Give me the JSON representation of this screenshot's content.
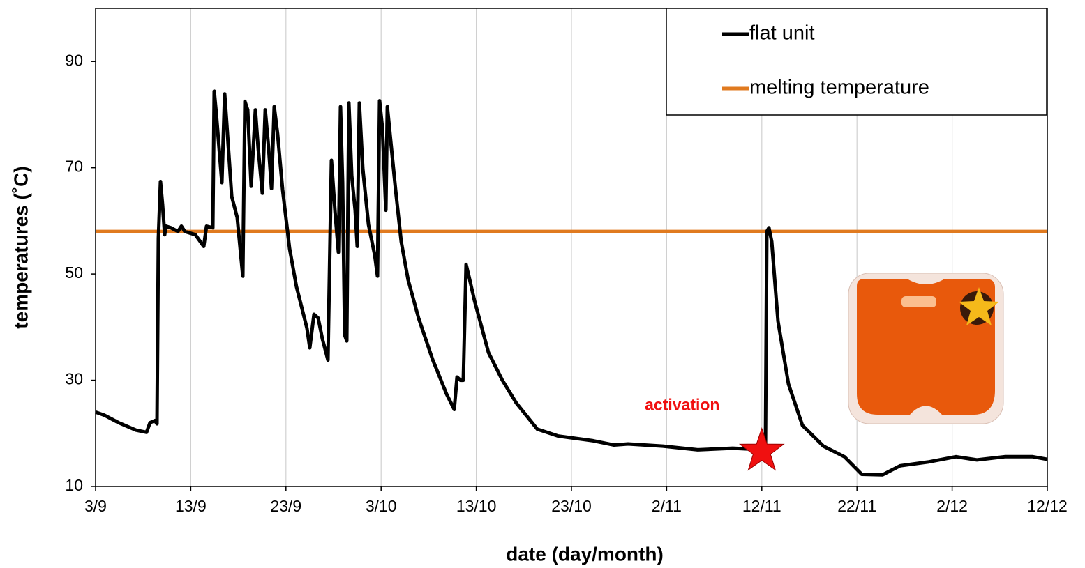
{
  "chart_data": {
    "type": "line",
    "x_label": "date (day/month)",
    "y_label": "temperatures (˚C)",
    "xlim": [
      0,
      100
    ],
    "ylim": [
      10,
      100
    ],
    "xticks": [
      {
        "value": 0,
        "label": "3/9"
      },
      {
        "value": 10,
        "label": "13/9"
      },
      {
        "value": 20,
        "label": "23/9"
      },
      {
        "value": 30,
        "label": "3/10"
      },
      {
        "value": 40,
        "label": "13/10"
      },
      {
        "value": 50,
        "label": "23/10"
      },
      {
        "value": 60,
        "label": "2/11"
      },
      {
        "value": 70,
        "label": "12/11"
      },
      {
        "value": 80,
        "label": "22/11"
      },
      {
        "value": 90,
        "label": "2/12"
      },
      {
        "value": 100,
        "label": "12/12"
      }
    ],
    "yticks": [
      10,
      30,
      50,
      70,
      90
    ],
    "grid": "x",
    "legend": "upper right",
    "series": [
      {
        "name": "flat unit",
        "color": "#000000",
        "x": [
          0,
          0.95,
          2.42,
          4.25,
          5.35,
          5.72,
          6.23,
          6.45,
          6.6,
          6.82,
          7.04,
          7.26,
          7.4,
          7.92,
          8.65,
          9.02,
          9.38,
          10.48,
          11.36,
          11.66,
          12.32,
          12.46,
          12.68,
          13.27,
          13.56,
          13.78,
          14.3,
          14.88,
          15.47,
          15.69,
          15.98,
          16.35,
          16.79,
          17.08,
          17.52,
          17.82,
          18.18,
          18.48,
          18.77,
          19.13,
          19.65,
          20.38,
          21.11,
          22.21,
          22.51,
          22.95,
          23.39,
          23.83,
          24.41,
          24.78,
          25.15,
          25.51,
          25.73,
          25.95,
          26.17,
          26.39,
          26.61,
          26.91,
          27.27,
          27.49,
          27.71,
          28.08,
          28.67,
          29.33,
          29.62,
          29.84,
          30.13,
          30.5,
          30.65,
          31.01,
          31.52,
          32.11,
          32.84,
          33.94,
          35.41,
          36.88,
          37.68,
          37.98,
          38.34,
          38.64,
          38.93,
          39.22,
          39.81,
          41.28,
          42.74,
          44.21,
          46.41,
          48.61,
          52.27,
          54.47,
          55.94,
          59.6,
          63.27,
          66.94,
          70.38,
          70.53,
          70.75,
          71.04,
          71.7,
          72.8,
          74.27,
          76.47,
          78.67,
          80.5,
          82.7,
          84.53,
          87.46,
          90.4,
          92.6,
          95.53,
          98.46,
          100
        ],
        "values": [
          24,
          23.4,
          22,
          20.6,
          20.2,
          22,
          22.4,
          21.8,
          56.7,
          67.4,
          63,
          57.4,
          59,
          58.7,
          58,
          59,
          58,
          57.4,
          55.2,
          59,
          58.7,
          84.4,
          80.2,
          67.2,
          83.9,
          78.3,
          64.6,
          60.6,
          49.6,
          82.5,
          80.9,
          66.5,
          80.9,
          73.7,
          65.2,
          80.9,
          73.7,
          66.1,
          81.5,
          76.3,
          65.9,
          54.8,
          47.6,
          39.8,
          36.1,
          42.4,
          41.7,
          37.8,
          33.8,
          71.4,
          62,
          54.1,
          81.5,
          67.2,
          38.5,
          37.4,
          82.2,
          68.5,
          62,
          55.2,
          82.2,
          69.8,
          59.3,
          53.5,
          49.6,
          82.6,
          77.6,
          62,
          81.5,
          75,
          65.9,
          56.1,
          48.9,
          41.7,
          33.9,
          27.4,
          24.5,
          30.6,
          30,
          30,
          51.8,
          49.6,
          45,
          35.2,
          30,
          25.7,
          20.8,
          19.5,
          18.6,
          17.8,
          18,
          17.6,
          16.9,
          17.2,
          16.9,
          58,
          58.7,
          56.1,
          41.1,
          29.3,
          21.5,
          17.6,
          15.6,
          12.3,
          12.2,
          13.9,
          14.6,
          15.6,
          15,
          15.6,
          15.6,
          15.1
        ]
      },
      {
        "name": "melting temperature",
        "color": "#e07a1f",
        "x": [
          0,
          100
        ],
        "values": [
          58,
          58
        ]
      }
    ],
    "annotations": [
      {
        "text": "activation",
        "x": 70,
        "y": 17
      }
    ]
  }
}
